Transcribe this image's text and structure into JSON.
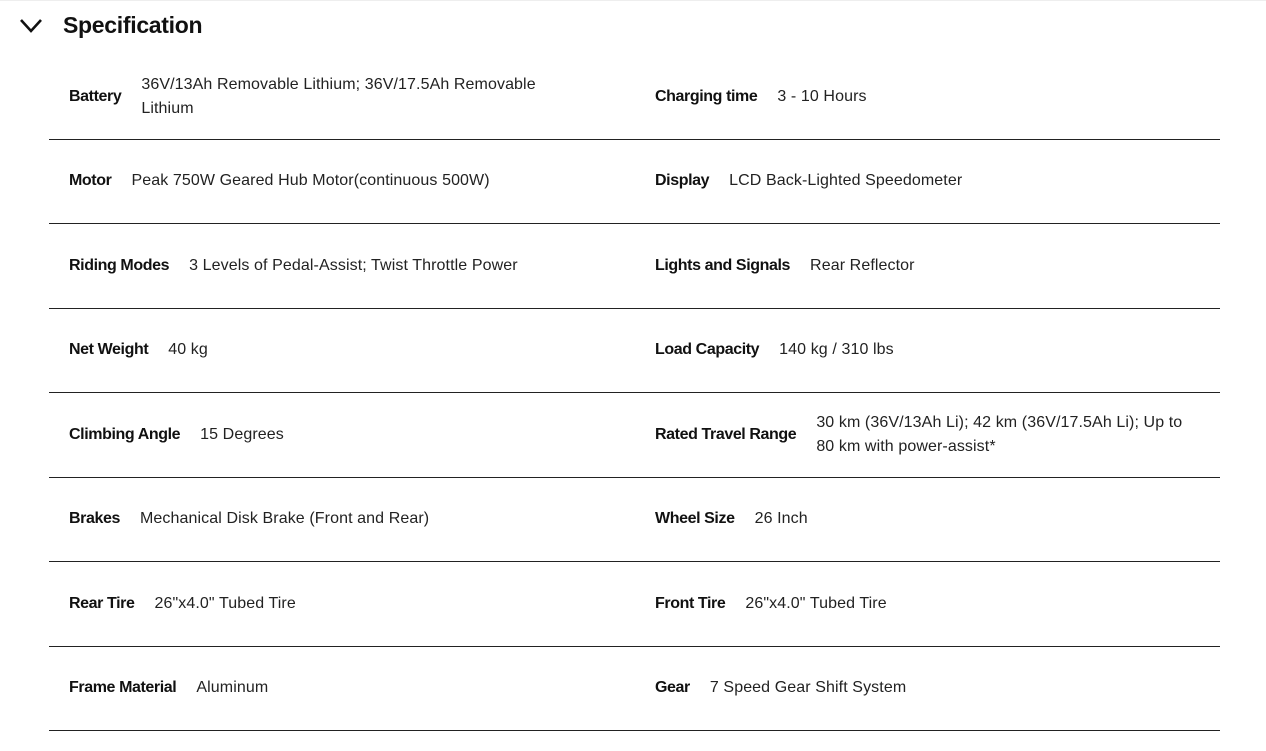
{
  "section": {
    "title": "Specification",
    "expanded": true,
    "icon": "chevron-down-icon"
  },
  "rows": [
    [
      {
        "label": "Battery",
        "value": "36V/13Ah Removable Lithium; 36V/17.5Ah Removable Lithium"
      },
      {
        "label": "Charging time",
        "value": "3 - 10 Hours"
      }
    ],
    [
      {
        "label": "Motor",
        "value": "Peak 750W Geared Hub Motor(continuous 500W)"
      },
      {
        "label": "Display",
        "value": "LCD Back-Lighted Speedometer"
      }
    ],
    [
      {
        "label": "Riding Modes",
        "value": "3 Levels of Pedal-Assist; Twist Throttle Power"
      },
      {
        "label": "Lights and Signals",
        "value": "Rear Reflector"
      }
    ],
    [
      {
        "label": "Net Weight",
        "value": "40 kg"
      },
      {
        "label": "Load Capacity",
        "value": "140 kg / 310 lbs"
      }
    ],
    [
      {
        "label": "Climbing Angle",
        "value": "15 Degrees"
      },
      {
        "label": "Rated Travel Range",
        "value": "30 km (36V/13Ah Li); 42 km (36V/17.5Ah Li); Up to 80 km with power-assist*"
      }
    ],
    [
      {
        "label": "Brakes",
        "value": "Mechanical Disk Brake (Front and Rear)"
      },
      {
        "label": "Wheel Size",
        "value": "26 Inch"
      }
    ],
    [
      {
        "label": "Rear Tire",
        "value": "26\"x4.0\" Tubed Tire"
      },
      {
        "label": "Front Tire",
        "value": "26\"x4.0\" Tubed Tire"
      }
    ],
    [
      {
        "label": "Frame Material",
        "value": "Aluminum"
      },
      {
        "label": "Gear",
        "value": "7 Speed Gear Shift System"
      }
    ]
  ]
}
